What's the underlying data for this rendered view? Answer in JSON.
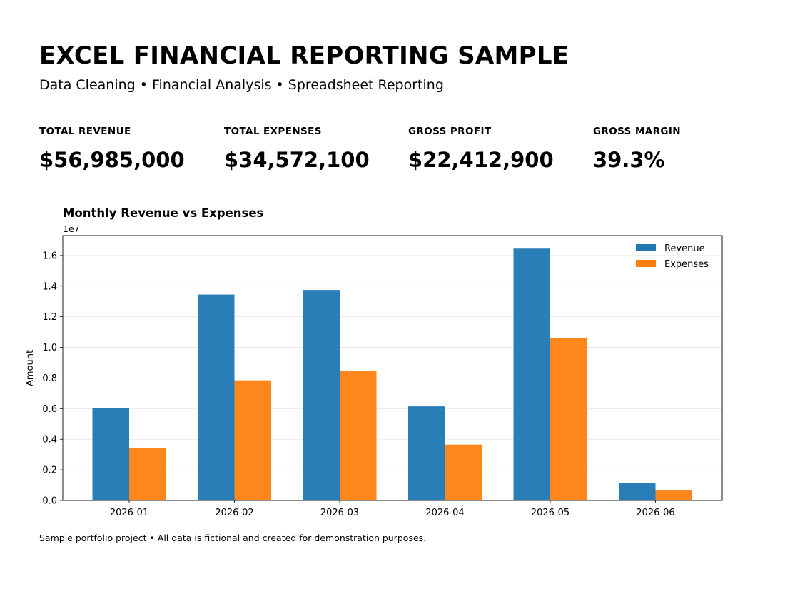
{
  "header": {
    "title": "EXCEL FINANCIAL REPORTING SAMPLE",
    "subtitle": "Data Cleaning • Financial Analysis • Spreadsheet Reporting"
  },
  "kpis": [
    {
      "label": "TOTAL REVENUE",
      "value": "$56,985,000"
    },
    {
      "label": "TOTAL EXPENSES",
      "value": "$34,572,100"
    },
    {
      "label": "GROSS PROFIT",
      "value": "$22,412,900"
    },
    {
      "label": "GROSS MARGIN",
      "value": "39.3%"
    }
  ],
  "chart_data": {
    "type": "bar",
    "title": "Monthly Revenue vs Expenses",
    "xlabel": "",
    "ylabel": "Amount",
    "offset_label": "1e7",
    "categories": [
      "2026-01",
      "2026-02",
      "2026-03",
      "2026-04",
      "2026-05",
      "2026-06"
    ],
    "series": [
      {
        "name": "Revenue",
        "color": "#1f77b4",
        "values": [
          6050000,
          13450000,
          13750000,
          6150000,
          16450000,
          1150000
        ]
      },
      {
        "name": "Expenses",
        "color": "#ff7f0e",
        "values": [
          3450000,
          7850000,
          8450000,
          3650000,
          10600000,
          650000
        ]
      }
    ],
    "ylim": [
      0,
      17300000
    ],
    "yticks": [
      0,
      2000000,
      4000000,
      6000000,
      8000000,
      10000000,
      12000000,
      14000000,
      16000000
    ],
    "ytick_labels": [
      "0.0",
      "0.2",
      "0.4",
      "0.6",
      "0.8",
      "1.0",
      "1.2",
      "1.4",
      "1.6"
    ],
    "grid": true,
    "legend": "top-right"
  },
  "footer": {
    "note": "Sample portfolio project • All data is fictional and created for demonstration purposes."
  }
}
